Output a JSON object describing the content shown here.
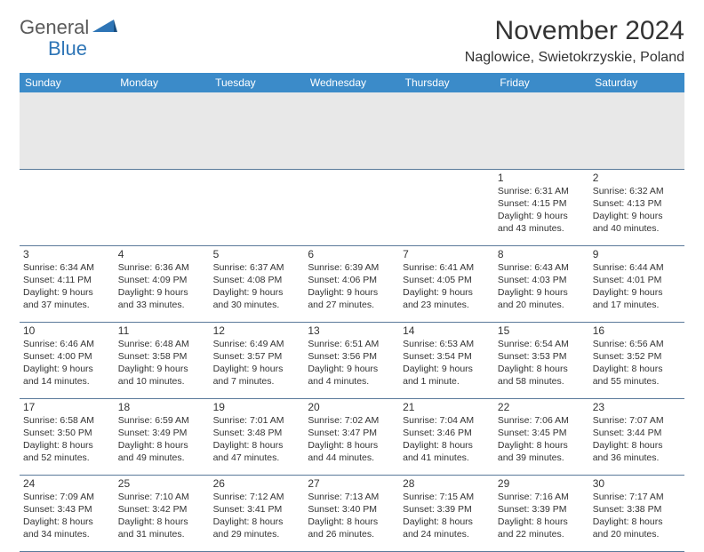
{
  "logo": {
    "part1": "General",
    "part2": "Blue"
  },
  "title": "November 2024",
  "location": "Naglowice, Swietokrzyskie, Poland",
  "colors": {
    "header_bg": "#3b8bc9",
    "header_fg": "#ffffff",
    "spacer_bg": "#e8e8e8",
    "border": "#5a7a9a",
    "text": "#333333",
    "logo_gray": "#5a5a5a",
    "logo_blue": "#2e75b6",
    "page_bg": "#ffffff"
  },
  "typography": {
    "title_fontsize": 30,
    "location_fontsize": 16,
    "dayheader_fontsize": 12,
    "daynum_fontsize": 12,
    "info_fontsize": 10.5
  },
  "day_headers": [
    "Sunday",
    "Monday",
    "Tuesday",
    "Wednesday",
    "Thursday",
    "Friday",
    "Saturday"
  ],
  "weeks": [
    [
      null,
      null,
      null,
      null,
      null,
      {
        "day": "1",
        "sunrise": "Sunrise: 6:31 AM",
        "sunset": "Sunset: 4:15 PM",
        "daylight": "Daylight: 9 hours and 43 minutes."
      },
      {
        "day": "2",
        "sunrise": "Sunrise: 6:32 AM",
        "sunset": "Sunset: 4:13 PM",
        "daylight": "Daylight: 9 hours and 40 minutes."
      }
    ],
    [
      {
        "day": "3",
        "sunrise": "Sunrise: 6:34 AM",
        "sunset": "Sunset: 4:11 PM",
        "daylight": "Daylight: 9 hours and 37 minutes."
      },
      {
        "day": "4",
        "sunrise": "Sunrise: 6:36 AM",
        "sunset": "Sunset: 4:09 PM",
        "daylight": "Daylight: 9 hours and 33 minutes."
      },
      {
        "day": "5",
        "sunrise": "Sunrise: 6:37 AM",
        "sunset": "Sunset: 4:08 PM",
        "daylight": "Daylight: 9 hours and 30 minutes."
      },
      {
        "day": "6",
        "sunrise": "Sunrise: 6:39 AM",
        "sunset": "Sunset: 4:06 PM",
        "daylight": "Daylight: 9 hours and 27 minutes."
      },
      {
        "day": "7",
        "sunrise": "Sunrise: 6:41 AM",
        "sunset": "Sunset: 4:05 PM",
        "daylight": "Daylight: 9 hours and 23 minutes."
      },
      {
        "day": "8",
        "sunrise": "Sunrise: 6:43 AM",
        "sunset": "Sunset: 4:03 PM",
        "daylight": "Daylight: 9 hours and 20 minutes."
      },
      {
        "day": "9",
        "sunrise": "Sunrise: 6:44 AM",
        "sunset": "Sunset: 4:01 PM",
        "daylight": "Daylight: 9 hours and 17 minutes."
      }
    ],
    [
      {
        "day": "10",
        "sunrise": "Sunrise: 6:46 AM",
        "sunset": "Sunset: 4:00 PM",
        "daylight": "Daylight: 9 hours and 14 minutes."
      },
      {
        "day": "11",
        "sunrise": "Sunrise: 6:48 AM",
        "sunset": "Sunset: 3:58 PM",
        "daylight": "Daylight: 9 hours and 10 minutes."
      },
      {
        "day": "12",
        "sunrise": "Sunrise: 6:49 AM",
        "sunset": "Sunset: 3:57 PM",
        "daylight": "Daylight: 9 hours and 7 minutes."
      },
      {
        "day": "13",
        "sunrise": "Sunrise: 6:51 AM",
        "sunset": "Sunset: 3:56 PM",
        "daylight": "Daylight: 9 hours and 4 minutes."
      },
      {
        "day": "14",
        "sunrise": "Sunrise: 6:53 AM",
        "sunset": "Sunset: 3:54 PM",
        "daylight": "Daylight: 9 hours and 1 minute."
      },
      {
        "day": "15",
        "sunrise": "Sunrise: 6:54 AM",
        "sunset": "Sunset: 3:53 PM",
        "daylight": "Daylight: 8 hours and 58 minutes."
      },
      {
        "day": "16",
        "sunrise": "Sunrise: 6:56 AM",
        "sunset": "Sunset: 3:52 PM",
        "daylight": "Daylight: 8 hours and 55 minutes."
      }
    ],
    [
      {
        "day": "17",
        "sunrise": "Sunrise: 6:58 AM",
        "sunset": "Sunset: 3:50 PM",
        "daylight": "Daylight: 8 hours and 52 minutes."
      },
      {
        "day": "18",
        "sunrise": "Sunrise: 6:59 AM",
        "sunset": "Sunset: 3:49 PM",
        "daylight": "Daylight: 8 hours and 49 minutes."
      },
      {
        "day": "19",
        "sunrise": "Sunrise: 7:01 AM",
        "sunset": "Sunset: 3:48 PM",
        "daylight": "Daylight: 8 hours and 47 minutes."
      },
      {
        "day": "20",
        "sunrise": "Sunrise: 7:02 AM",
        "sunset": "Sunset: 3:47 PM",
        "daylight": "Daylight: 8 hours and 44 minutes."
      },
      {
        "day": "21",
        "sunrise": "Sunrise: 7:04 AM",
        "sunset": "Sunset: 3:46 PM",
        "daylight": "Daylight: 8 hours and 41 minutes."
      },
      {
        "day": "22",
        "sunrise": "Sunrise: 7:06 AM",
        "sunset": "Sunset: 3:45 PM",
        "daylight": "Daylight: 8 hours and 39 minutes."
      },
      {
        "day": "23",
        "sunrise": "Sunrise: 7:07 AM",
        "sunset": "Sunset: 3:44 PM",
        "daylight": "Daylight: 8 hours and 36 minutes."
      }
    ],
    [
      {
        "day": "24",
        "sunrise": "Sunrise: 7:09 AM",
        "sunset": "Sunset: 3:43 PM",
        "daylight": "Daylight: 8 hours and 34 minutes."
      },
      {
        "day": "25",
        "sunrise": "Sunrise: 7:10 AM",
        "sunset": "Sunset: 3:42 PM",
        "daylight": "Daylight: 8 hours and 31 minutes."
      },
      {
        "day": "26",
        "sunrise": "Sunrise: 7:12 AM",
        "sunset": "Sunset: 3:41 PM",
        "daylight": "Daylight: 8 hours and 29 minutes."
      },
      {
        "day": "27",
        "sunrise": "Sunrise: 7:13 AM",
        "sunset": "Sunset: 3:40 PM",
        "daylight": "Daylight: 8 hours and 26 minutes."
      },
      {
        "day": "28",
        "sunrise": "Sunrise: 7:15 AM",
        "sunset": "Sunset: 3:39 PM",
        "daylight": "Daylight: 8 hours and 24 minutes."
      },
      {
        "day": "29",
        "sunrise": "Sunrise: 7:16 AM",
        "sunset": "Sunset: 3:39 PM",
        "daylight": "Daylight: 8 hours and 22 minutes."
      },
      {
        "day": "30",
        "sunrise": "Sunrise: 7:17 AM",
        "sunset": "Sunset: 3:38 PM",
        "daylight": "Daylight: 8 hours and 20 minutes."
      }
    ]
  ]
}
